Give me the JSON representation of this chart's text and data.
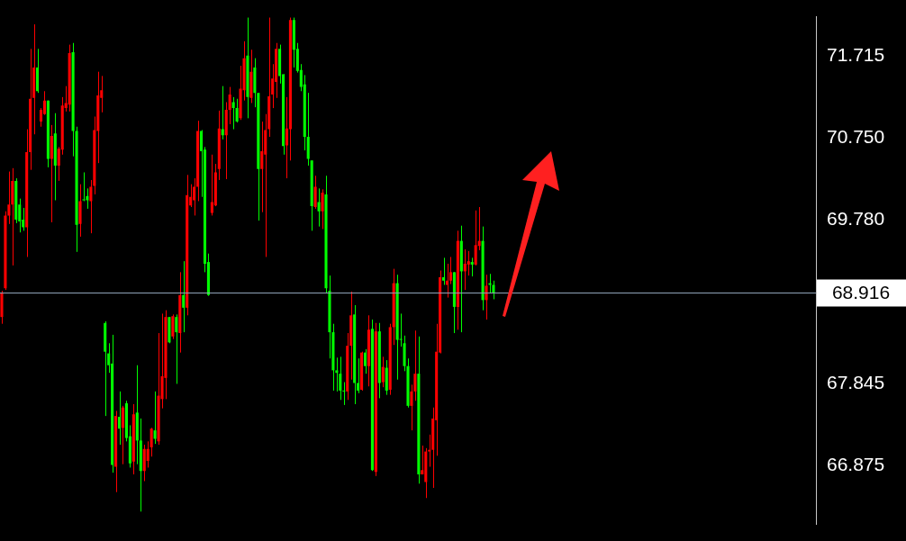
{
  "chart_data": {
    "type": "candlestick",
    "categories": [
      null,
      null,
      null,
      null,
      null,
      null,
      null,
      null,
      null,
      null,
      null,
      null,
      null,
      null,
      null,
      null,
      null,
      null,
      null,
      null,
      null,
      null,
      null,
      null,
      null,
      null,
      null,
      null,
      null,
      null,
      null,
      null,
      null,
      null,
      null,
      null,
      null,
      null,
      null,
      null,
      null,
      null,
      null,
      null,
      null,
      null,
      null,
      null,
      null,
      null,
      null,
      null,
      null,
      null,
      null,
      null,
      null,
      null,
      null,
      null,
      null,
      null,
      null,
      null,
      null,
      null,
      null,
      null,
      null,
      null,
      null,
      null,
      null,
      null,
      null,
      null,
      null,
      null,
      null,
      null,
      null,
      null,
      null,
      null,
      null,
      null,
      null,
      null,
      null,
      null,
      null,
      null,
      null,
      null,
      null,
      null,
      null,
      null,
      null,
      null,
      null,
      null,
      null,
      null,
      null,
      null,
      null,
      null,
      null,
      null,
      null,
      null,
      null,
      null,
      null,
      null,
      null,
      null,
      null,
      null,
      null,
      null,
      null,
      null,
      null,
      null,
      null,
      null,
      null,
      null,
      null,
      null,
      null,
      null,
      null,
      null,
      null,
      null,
      null,
      null,
      null,
      null,
      null,
      null,
      null,
      null,
      null,
      null,
      null,
      null,
      null,
      null,
      null,
      null,
      null,
      null,
      null,
      null,
      null,
      null,
      null,
      null,
      null,
      null,
      null,
      null,
      null,
      null,
      null,
      null,
      null,
      null,
      null,
      null,
      null,
      null,
      null,
      null,
      null,
      null,
      null,
      null,
      null,
      null,
      null,
      null,
      null,
      null,
      null,
      null,
      null,
      null,
      null,
      null,
      null,
      null,
      null,
      null,
      null,
      null,
      null,
      null,
      null,
      null,
      null,
      null,
      null,
      null,
      null,
      null,
      null,
      null,
      null,
      null,
      null,
      null,
      null,
      null,
      null,
      null,
      null,
      null,
      null,
      null,
      null,
      null,
      null,
      null,
      null
    ],
    "ohlc": [
      [
        68.63,
        68.94,
        68.55,
        68.92
      ],
      [
        68.97,
        69.88,
        68.95,
        69.83
      ],
      [
        69.83,
        70.35,
        69.73,
        69.96
      ],
      [
        69.96,
        70.39,
        69.24,
        70.24
      ],
      [
        70.24,
        70.27,
        69.74,
        69.78
      ],
      [
        69.96,
        70.03,
        69.63,
        69.76
      ],
      [
        69.78,
        69.92,
        69.65,
        69.69
      ],
      [
        69.69,
        70.85,
        69.34,
        70.58
      ],
      [
        70.58,
        71.8,
        70.37,
        71.21
      ],
      [
        71.22,
        72.09,
        70.79,
        71.58
      ],
      [
        71.58,
        71.8,
        71.28,
        71.3
      ],
      [
        70.94,
        71.1,
        70.88,
        71.08
      ],
      [
        71.03,
        71.3,
        71.02,
        71.19
      ],
      [
        71.19,
        71.19,
        70.4,
        70.5
      ],
      [
        70.5,
        70.9,
        69.75,
        70.77
      ],
      [
        70.8,
        71.04,
        70.01,
        70.42
      ],
      [
        70.42,
        70.64,
        70.24,
        70.62
      ],
      [
        70.61,
        71.23,
        70.55,
        71.13
      ],
      [
        71.1,
        71.36,
        71.06,
        71.16
      ],
      [
        71.14,
        71.85,
        71.06,
        71.75
      ],
      [
        71.76,
        71.87,
        70.53,
        70.83
      ],
      [
        70.83,
        70.88,
        69.4,
        69.72
      ],
      [
        69.73,
        70.2,
        69.58,
        70.0
      ],
      [
        70.02,
        70.34,
        70.0,
        70.01
      ],
      [
        70.06,
        70.15,
        69.91,
        70.01
      ],
      [
        70.0,
        70.25,
        69.62,
        70.17
      ],
      [
        70.18,
        71.0,
        70.08,
        70.84
      ],
      [
        70.83,
        71.53,
        70.45,
        71.25
      ],
      [
        71.22,
        71.48,
        71.05,
        71.31
      ],
      [
        68.56,
        68.58,
        67.46,
        68.22
      ],
      [
        68.2,
        68.32,
        67.97,
        68.06
      ],
      [
        68.08,
        68.42,
        66.79,
        66.88
      ],
      [
        66.86,
        67.52,
        66.56,
        67.46
      ],
      [
        67.45,
        67.75,
        67.12,
        67.31
      ],
      [
        67.32,
        67.58,
        66.89,
        67.56
      ],
      [
        67.61,
        67.64,
        67.16,
        67.2
      ],
      [
        67.22,
        67.35,
        66.85,
        66.9
      ],
      [
        66.92,
        67.6,
        66.77,
        67.48
      ],
      [
        67.5,
        68.06,
        66.89,
        67.17
      ],
      [
        67.17,
        67.43,
        66.33,
        66.81
      ],
      [
        66.81,
        67.12,
        66.69,
        67.07
      ],
      [
        66.93,
        67.16,
        66.85,
        67.07
      ],
      [
        67.09,
        67.32,
        66.98,
        67.31
      ],
      [
        67.29,
        67.75,
        67.13,
        67.19
      ],
      [
        67.16,
        68.44,
        67.12,
        67.7
      ],
      [
        67.66,
        68.67,
        67.55,
        67.93
      ],
      [
        67.91,
        68.71,
        67.66,
        68.63
      ],
      [
        68.63,
        68.63,
        68.32,
        68.33
      ],
      [
        68.4,
        68.66,
        68.37,
        68.64
      ],
      [
        68.63,
        68.66,
        67.84,
        68.45
      ],
      [
        68.44,
        69.16,
        68.21,
        68.89
      ],
      [
        68.89,
        69.29,
        68.45,
        68.74
      ],
      [
        68.74,
        70.31,
        68.65,
        70.07
      ],
      [
        69.95,
        70.2,
        69.93,
        70.05
      ],
      [
        70.01,
        70.27,
        69.83,
        70.17
      ],
      [
        70.17,
        70.95,
        70.0,
        70.83
      ],
      [
        70.83,
        70.84,
        70.05,
        70.59
      ],
      [
        70.61,
        70.64,
        69.16,
        69.26
      ],
      [
        69.28,
        69.38,
        68.88,
        68.89
      ],
      [
        69.86,
        70.55,
        69.83,
        69.99
      ],
      [
        69.95,
        70.44,
        69.94,
        70.34
      ],
      [
        70.38,
        71.07,
        70.25,
        70.86
      ],
      [
        70.85,
        71.36,
        70.73,
        70.78
      ],
      [
        70.78,
        71.17,
        70.26,
        71.08
      ],
      [
        71.08,
        71.35,
        70.91,
        71.26
      ],
      [
        71.17,
        71.23,
        70.85,
        71.1
      ],
      [
        71.1,
        71.21,
        70.93,
        70.94
      ],
      [
        70.98,
        71.6,
        70.96,
        71.33
      ],
      [
        71.31,
        71.89,
        71.19,
        71.69
      ],
      [
        71.72,
        72.17,
        70.98,
        71.23
      ],
      [
        71.22,
        71.79,
        71.16,
        71.53
      ],
      [
        71.58,
        71.69,
        71.11,
        71.28
      ],
      [
        71.28,
        71.28,
        69.77,
        70.38
      ],
      [
        70.38,
        70.94,
        69.87,
        70.59
      ],
      [
        70.55,
        71.03,
        69.34,
        70.84
      ],
      [
        70.85,
        72.17,
        70.76,
        71.24
      ],
      [
        71.26,
        71.62,
        71.1,
        71.45
      ],
      [
        71.41,
        71.87,
        71.22,
        71.8
      ],
      [
        71.8,
        71.85,
        71.39,
        71.48
      ],
      [
        71.5,
        71.5,
        70.55,
        70.65
      ],
      [
        70.66,
        71.23,
        70.27,
        70.86
      ],
      [
        70.85,
        72.17,
        70.48,
        72.14
      ],
      [
        72.14,
        72.17,
        71.58,
        71.79
      ],
      [
        71.8,
        71.87,
        71.52,
        71.54
      ],
      [
        71.55,
        71.62,
        71.3,
        71.35
      ],
      [
        71.38,
        71.49,
        70.6,
        70.76
      ],
      [
        70.76,
        71.28,
        70.42,
        70.5
      ],
      [
        70.48,
        70.48,
        69.65,
        69.94
      ],
      [
        69.93,
        70.3,
        69.91,
        70.17
      ],
      [
        69.99,
        70.15,
        69.7,
        69.88
      ],
      [
        69.88,
        70.14,
        69.67,
        70.1
      ],
      [
        70.08,
        70.3,
        68.91,
        68.97
      ],
      [
        68.94,
        69.12,
        68.14,
        68.45
      ],
      [
        68.45,
        68.55,
        67.76,
        68.0
      ],
      [
        68.0,
        68.15,
        67.75,
        67.97
      ],
      [
        67.96,
        68.16,
        67.65,
        67.76
      ],
      [
        67.76,
        67.86,
        67.59,
        67.75
      ],
      [
        67.75,
        68.44,
        67.65,
        68.29
      ],
      [
        68.29,
        68.93,
        67.89,
        68.65
      ],
      [
        68.66,
        68.77,
        67.6,
        67.85
      ],
      [
        67.85,
        68.14,
        67.73,
        67.76
      ],
      [
        67.77,
        68.22,
        67.76,
        68.21
      ],
      [
        68.21,
        68.25,
        67.96,
        68.05
      ],
      [
        68.05,
        68.65,
        67.81,
        68.48
      ],
      [
        68.49,
        68.6,
        66.81,
        66.82
      ],
      [
        66.8,
        68.56,
        66.75,
        68.46
      ],
      [
        68.46,
        68.56,
        67.67,
        67.85
      ],
      [
        67.86,
        68.16,
        67.8,
        68.04
      ],
      [
        68.03,
        68.12,
        67.71,
        67.76
      ],
      [
        67.77,
        68.55,
        67.71,
        68.51
      ],
      [
        68.51,
        69.2,
        68.3,
        69.03
      ],
      [
        69.03,
        69.13,
        67.89,
        68.36
      ],
      [
        68.37,
        68.67,
        68.28,
        68.36
      ],
      [
        68.32,
        68.41,
        67.99,
        68.05
      ],
      [
        68.05,
        68.14,
        67.56,
        67.58
      ],
      [
        67.58,
        67.83,
        67.29,
        67.75
      ],
      [
        67.75,
        68.47,
        67.64,
        67.96
      ],
      [
        67.96,
        68.4,
        66.66,
        66.77
      ],
      [
        66.77,
        67.11,
        66.77,
        66.82
      ],
      [
        66.68,
        67.08,
        66.49,
        67.04
      ],
      [
        67.04,
        67.24,
        66.86,
        67.06
      ],
      [
        67.06,
        67.56,
        66.61,
        67.43
      ],
      [
        67.41,
        68.55,
        66.99,
        68.22
      ],
      [
        68.21,
        69.18,
        68.2,
        69.1
      ],
      [
        69.1,
        69.33,
        69.01,
        69.06
      ],
      [
        69.01,
        69.26,
        68.86,
        69.06
      ],
      [
        69.06,
        69.34,
        69.02,
        69.16
      ],
      [
        69.16,
        69.16,
        68.44,
        68.75
      ],
      [
        68.75,
        69.65,
        68.48,
        69.53
      ],
      [
        69.53,
        69.71,
        68.45,
        69.17
      ],
      [
        69.17,
        69.43,
        68.95,
        69.26
      ],
      [
        69.25,
        69.41,
        69.12,
        69.29
      ],
      [
        69.28,
        69.33,
        69.11,
        69.25
      ],
      [
        69.25,
        69.89,
        69.24,
        69.48
      ],
      [
        69.47,
        69.93,
        69.42,
        69.53
      ],
      [
        69.53,
        69.7,
        68.71,
        68.83
      ],
      [
        68.83,
        69.13,
        68.6,
        69.0
      ],
      [
        69.03,
        69.14,
        68.91,
        69.01
      ],
      [
        69.01,
        69.06,
        68.84,
        68.916
      ],
      null,
      null,
      null,
      null,
      null,
      null,
      null,
      null,
      null,
      null,
      null,
      null,
      null,
      null,
      null,
      null,
      null,
      null,
      null,
      null,
      null,
      null,
      null,
      null,
      null,
      null,
      null,
      null,
      null,
      null,
      null,
      null,
      null,
      null,
      null,
      null,
      null,
      null,
      null,
      null,
      null,
      null,
      null,
      null,
      null,
      null,
      null,
      null,
      null,
      null,
      null,
      null,
      null,
      null,
      null,
      null,
      null,
      null,
      null,
      null,
      null,
      null,
      null,
      null,
      null,
      null,
      null,
      null,
      null,
      null,
      null,
      null,
      null,
      null,
      null,
      null,
      null,
      null,
      null,
      null,
      null,
      null,
      null,
      null,
      null,
      null,
      null,
      null,
      null,
      null
    ],
    "colors": [
      "#ff0000",
      "#ff0000",
      "#ff0000",
      "#ff0000",
      "#00ff00",
      "#00ff00",
      "#00ff00",
      "#ff0000",
      "#ff0000",
      "#ff0000",
      "#00ff00",
      "#ff0000",
      "#ff0000",
      "#00ff00",
      "#ff0000",
      "#00ff00",
      "#ff0000",
      "#ff0000",
      "#ff0000",
      "#ff0000",
      "#00ff00",
      "#00ff00",
      "#ff0000",
      "#00ff00",
      "#00ff00",
      "#ff0000",
      "#ff0000",
      "#ff0000",
      "#ff0000",
      "#00ff00",
      "#00ff00",
      "#00ff00",
      "#ff0000",
      "#00ff00",
      "#ff0000",
      "#00ff00",
      "#00ff00",
      "#ff0000",
      "#00ff00",
      "#00ff00",
      "#ff0000",
      "#ff0000",
      "#ff0000",
      "#00ff00",
      "#ff0000",
      "#ff0000",
      "#ff0000",
      "#00ff00",
      "#ff0000",
      "#00ff00",
      "#ff0000",
      "#00ff00",
      "#ff0000",
      "#ff0000",
      "#ff0000",
      "#ff0000",
      "#00ff00",
      "#00ff00",
      "#00ff00",
      "#ff0000",
      "#ff0000",
      "#ff0000",
      "#00ff00",
      "#ff0000",
      "#ff0000",
      "#00ff00",
      "#00ff00",
      "#ff0000",
      "#ff0000",
      "#00ff00",
      "#ff0000",
      "#00ff00",
      "#00ff00",
      "#ff0000",
      "#ff0000",
      "#ff0000",
      "#ff0000",
      "#ff0000",
      "#00ff00",
      "#00ff00",
      "#ff0000",
      "#ff0000",
      "#00ff00",
      "#00ff00",
      "#00ff00",
      "#00ff00",
      "#00ff00",
      "#00ff00",
      "#ff0000",
      "#00ff00",
      "#ff0000",
      "#00ff00",
      "#00ff00",
      "#00ff00",
      "#00ff00",
      "#00ff00",
      "#00ff00",
      "#ff0000",
      "#ff0000",
      "#00ff00",
      "#00ff00",
      "#ff0000",
      "#00ff00",
      "#ff0000",
      "#00ff00",
      "#ff0000",
      "#00ff00",
      "#ff0000",
      "#00ff00",
      "#ff0000",
      "#ff0000",
      "#00ff00",
      "#00ff00",
      "#00ff00",
      "#00ff00",
      "#ff0000",
      "#ff0000",
      "#00ff00",
      "#ff0000",
      "#ff0000",
      "#ff0000",
      "#ff0000",
      "#ff0000",
      "#ff0000",
      "#00ff00",
      "#ff0000",
      "#ff0000",
      "#00ff00",
      "#ff0000",
      "#00ff00",
      "#ff0000",
      "#ff0000",
      "#00ff00",
      "#ff0000",
      "#ff0000",
      "#00ff00",
      "#ff0000",
      "#00ff00",
      "#00ff00",
      null,
      null,
      null,
      null,
      null,
      null,
      null,
      null,
      null,
      null,
      null,
      null,
      null,
      null,
      null,
      null,
      null,
      null,
      null,
      null,
      null,
      null,
      null,
      null,
      null,
      null,
      null,
      null,
      null,
      null,
      null,
      null,
      null,
      null,
      null,
      null,
      null,
      null,
      null,
      null,
      null,
      null,
      null,
      null,
      null,
      null,
      null,
      null,
      null,
      null,
      null,
      null,
      null,
      null,
      null,
      null,
      null,
      null,
      null,
      null,
      null,
      null,
      null,
      null,
      null,
      null,
      null,
      null,
      null,
      null,
      null,
      null,
      null,
      null,
      null,
      null,
      null,
      null,
      null,
      null,
      null,
      null,
      null,
      null,
      null,
      null,
      null,
      null,
      null,
      null
    ],
    "ylim": [
      66.18,
      72.18
    ],
    "yticks": [
      {
        "value": 66.875,
        "label": "66.875"
      },
      {
        "value": 67.845,
        "label": "67.845"
      },
      {
        "value": 69.78,
        "label": "69.780"
      },
      {
        "value": 70.75,
        "label": "70.750"
      },
      {
        "value": 71.715,
        "label": "71.715"
      }
    ],
    "tick_labels": "y",
    "ref_lines": [
      {
        "axis": "y",
        "value": 68.916,
        "label": "68.916",
        "color": "#8fa3b8"
      }
    ]
  }
}
